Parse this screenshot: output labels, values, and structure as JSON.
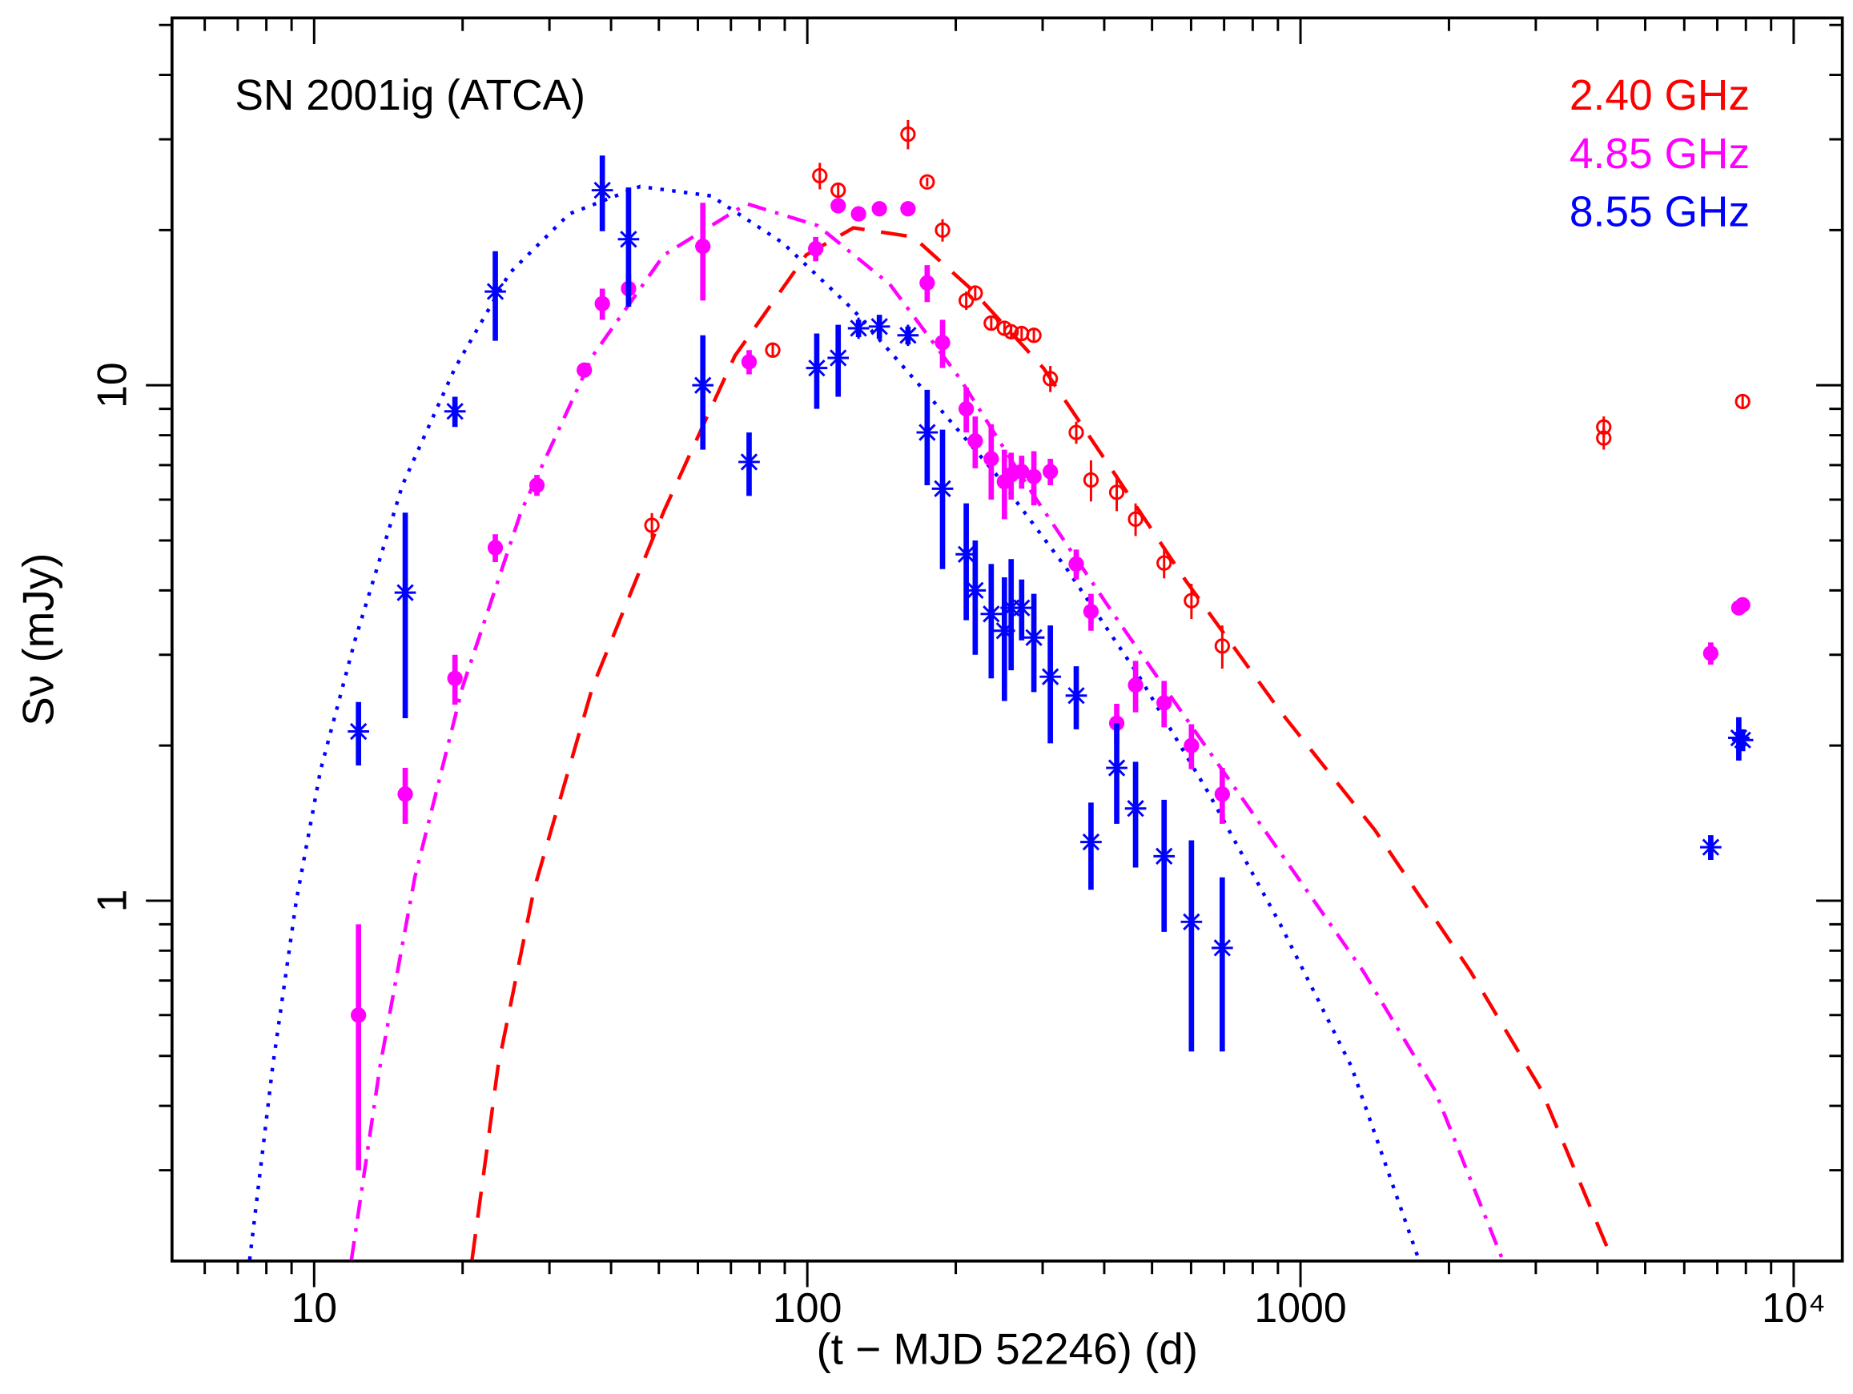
{
  "chart_data": {
    "type": "scatter",
    "title": "SN 2001ig (ATCA)",
    "xlabel": "(t − MJD 52246) (d)",
    "ylabel": "Sν (mJy)",
    "xscale": "log",
    "yscale": "log",
    "xlim": [
      5.15,
      12550
    ],
    "ylim": [
      0.2,
      51.6
    ],
    "xticks": [
      10,
      100,
      1000,
      {
        "value": 10000,
        "label": "10⁴"
      }
    ],
    "yticks": [
      1,
      10
    ],
    "xticks_minor": [
      6,
      7,
      8,
      9,
      20,
      30,
      40,
      50,
      60,
      70,
      80,
      90,
      200,
      300,
      400,
      500,
      600,
      700,
      800,
      900,
      2000,
      3000,
      4000,
      5000,
      6000,
      7000,
      8000,
      9000
    ],
    "yticks_minor": [
      0.3,
      0.4,
      0.5,
      0.6,
      0.7,
      0.8,
      0.9,
      2,
      3,
      4,
      5,
      6,
      7,
      8,
      9,
      20,
      30,
      40,
      50
    ],
    "legend": "upper right",
    "series": [
      {
        "name": "2.40 GHz",
        "color": "#ff0000",
        "marker": "open-circle",
        "x": [
          48.4,
          85.1,
          106,
          115.5,
          160,
          175,
          188,
          210,
          219,
          236,
          251,
          259,
          272,
          288,
          311,
          351,
          376,
          424,
          463,
          529,
          601,
          694,
          4120,
          4120,
          7880
        ],
        "values": [
          5.35,
          11.7,
          25.5,
          23.9,
          30.7,
          24.8,
          20,
          14.6,
          15.1,
          13.2,
          12.9,
          12.7,
          12.6,
          12.5,
          10.3,
          8.1,
          6.55,
          6.2,
          5.5,
          4.52,
          3.82,
          3.12,
          8.3,
          7.9,
          9.3
        ],
        "errors": [
          0.3,
          0.3,
          1.5,
          0.6,
          2,
          0.5,
          1,
          0.6,
          0.5,
          0.4,
          0.4,
          0.3,
          0.3,
          0.4,
          0.6,
          0.4,
          0.6,
          0.5,
          0.4,
          0.3,
          0.3,
          0.3,
          0.4,
          0.4,
          0.3
        ]
      },
      {
        "name": "4.85 GHz",
        "color": "#ff00ff",
        "marker": "filled-circle",
        "x": [
          12.3,
          15.3,
          19.3,
          23.3,
          28.3,
          35.3,
          38.4,
          43.4,
          61.4,
          76.2,
          104,
          115.5,
          127,
          140,
          160,
          175,
          188,
          210,
          219,
          236,
          251,
          259,
          272,
          288,
          311,
          351,
          376,
          424,
          463,
          529,
          601,
          694,
          6790,
          7740,
          7880
        ],
        "values": [
          0.6,
          1.61,
          2.7,
          4.84,
          6.4,
          10.7,
          14.4,
          15.4,
          18.6,
          11.1,
          18.4,
          22.3,
          21.5,
          22,
          22,
          15.8,
          12.1,
          9.0,
          7.8,
          7.2,
          6.5,
          6.7,
          6.8,
          6.65,
          6.8,
          4.5,
          3.64,
          2.21,
          2.62,
          2.42,
          2.0,
          1.61,
          3.02,
          3.7,
          3.75
        ],
        "errors": [
          0.3,
          0.2,
          0.3,
          0.3,
          0.3,
          0.3,
          1,
          1,
          4,
          0.6,
          1,
          0.6,
          0.4,
          0.4,
          0.4,
          1.3,
          1.3,
          0.9,
          0.9,
          1.2,
          1,
          0.7,
          0.5,
          0.8,
          0.4,
          0.3,
          0.3,
          0.2,
          0.3,
          0.25,
          0.2,
          0.2,
          0.15,
          0.1,
          0.1
        ]
      },
      {
        "name": "8.55 GHz",
        "color": "#0000ff",
        "marker": "asterisk",
        "x": [
          12.3,
          15.3,
          19.3,
          23.3,
          38.4,
          43.4,
          61.4,
          76.2,
          104.5,
          115.5,
          127,
          140,
          160,
          175,
          188,
          210,
          219,
          236,
          251,
          259,
          272,
          288,
          311,
          351,
          376,
          424,
          463,
          529,
          601,
          694,
          6790,
          7740,
          7880
        ],
        "values": [
          2.13,
          3.96,
          8.9,
          15.2,
          23.9,
          19.2,
          10,
          7.1,
          10.8,
          11.3,
          12.9,
          13,
          12.5,
          8.1,
          6.3,
          4.7,
          4.0,
          3.6,
          3.34,
          3.7,
          3.7,
          3.24,
          2.72,
          2.5,
          1.3,
          1.81,
          1.51,
          1.22,
          0.91,
          0.81,
          1.27,
          2.07,
          2.05
        ],
        "errors": [
          0.3,
          1.7,
          0.6,
          3,
          4,
          5,
          2.5,
          1,
          1.8,
          1.8,
          0.5,
          0.7,
          0.5,
          1.7,
          1.9,
          1.2,
          1,
          0.9,
          0.9,
          0.9,
          0.5,
          0.7,
          0.7,
          0.35,
          0.25,
          0.4,
          0.35,
          0.35,
          0.4,
          0.3,
          0.07,
          0.2,
          0.1
        ]
      }
    ],
    "models": [
      {
        "color": "#ff0000",
        "dash": "dashed",
        "x": [
          20.9,
          23.6,
          27.9,
          36.7,
          51.2,
          71.3,
          99.5,
          124,
          164,
          216,
          301,
          420,
          585,
          910,
          1416,
          2210,
          3076,
          4290
        ],
        "values": [
          0.201,
          0.477,
          1.05,
          2.6,
          5.7,
          11.4,
          17.9,
          20.2,
          19.4,
          15.3,
          10.8,
          6.73,
          4.18,
          2.33,
          1.37,
          0.73,
          0.43,
          0.201
        ]
      },
      {
        "color": "#ff00ff",
        "dash": "dash-dot",
        "x": [
          11.9,
          13.6,
          16.0,
          20.0,
          26.3,
          36.7,
          51.2,
          75.4,
          105,
          147,
          204,
          285,
          420,
          618,
          910,
          1340,
          1870,
          2570
        ],
        "values": [
          0.201,
          0.477,
          1.11,
          2.6,
          5.7,
          11.4,
          17.9,
          22.5,
          20.4,
          15.7,
          10.3,
          6.2,
          3.57,
          2.1,
          1.24,
          0.73,
          0.43,
          0.201
        ]
      },
      {
        "color": "#0000ff",
        "dash": "dotted",
        "x": [
          7.4,
          8.24,
          9.2,
          10.3,
          12.1,
          15.1,
          19.3,
          24.9,
          32.9,
          45.8,
          63.8,
          89.1,
          124,
          173,
          241,
          336,
          469,
          653,
          910,
          1268,
          1738
        ],
        "values": [
          0.201,
          0.477,
          1.0,
          1.79,
          3.2,
          6.4,
          10.8,
          16.5,
          21.5,
          24.3,
          23.3,
          18.9,
          14.0,
          9.74,
          6.73,
          4.4,
          2.74,
          1.61,
          0.9,
          0.477,
          0.201
        ]
      }
    ]
  }
}
